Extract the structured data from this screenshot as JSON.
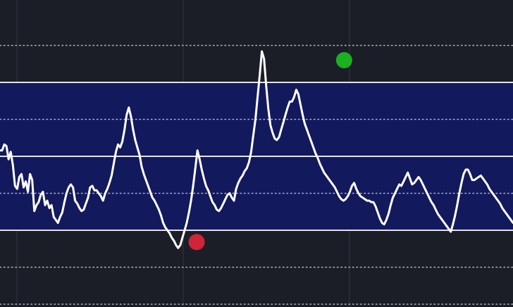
{
  "theme": {
    "background": "#1b1e27",
    "band_fill": "#13195d",
    "line_color": "#ffffff",
    "grid_color": "#c9ccd6",
    "vertical_grid_color": "#2a2e39",
    "low_marker_color": "#e3263a",
    "high_marker_color": "#19c11f"
  },
  "chart_data": {
    "type": "line",
    "title": "",
    "xlabel": "",
    "ylabel": "",
    "grid": true,
    "legend": "none",
    "x_range": [
      0,
      240
    ],
    "ylim": [
      -30,
      180
    ],
    "horizontal_levels": {
      "solid": [
        50,
        100,
        150
      ],
      "dotted": [
        0,
        25,
        75,
        125,
        175
      ]
    },
    "band": [
      50,
      150
    ],
    "series": [
      {
        "values": [
          104,
          104,
          108,
          107,
          98,
          103,
          94,
          80,
          78,
          86,
          88,
          79,
          83,
          76,
          88,
          84,
          63,
          67,
          69,
          74,
          76,
          67,
          70,
          65,
          67,
          59,
          57,
          55,
          59,
          62,
          69,
          75,
          79,
          81,
          79,
          70,
          68,
          65,
          63,
          64,
          68,
          72,
          79,
          80,
          77,
          77,
          75,
          73,
          70,
          75,
          78,
          82,
          87,
          95,
          103,
          108,
          106,
          110,
          118,
          128,
          133,
          127,
          118,
          111,
          106,
          101,
          93,
          88,
          84,
          80,
          76,
          72,
          70,
          67,
          64,
          60,
          55,
          52,
          50,
          48,
          45,
          43,
          40,
          38,
          40,
          45,
          50,
          55,
          62,
          70,
          80,
          92,
          104,
          98,
          91,
          85,
          80,
          77,
          73,
          69,
          67,
          64,
          63,
          65,
          68,
          71,
          74,
          75,
          72,
          70,
          78,
          82,
          85,
          87,
          90,
          92,
          96,
          103,
          114,
          125,
          140,
          155,
          171,
          166,
          148,
          132,
          121,
          116,
          112,
          111,
          113,
          118,
          123,
          128,
          133,
          137,
          137,
          140,
          145,
          142,
          135,
          128,
          122,
          118,
          114,
          110,
          106,
          102,
          99,
          95,
          92,
          89,
          87,
          85,
          83,
          81,
          79,
          76,
          73,
          71,
          70,
          71,
          73,
          76,
          80,
          82,
          78,
          75,
          73,
          72,
          71,
          70,
          70,
          69,
          69,
          66,
          62,
          58,
          55,
          54,
          57,
          61,
          67,
          72,
          75,
          78,
          81,
          80,
          83,
          86,
          89,
          85,
          81,
          82,
          84,
          86,
          84,
          81,
          78,
          75,
          72,
          69,
          67,
          64,
          61,
          59,
          57,
          55,
          53,
          51,
          49,
          54,
          60,
          67,
          75,
          82,
          88,
          91,
          91,
          88,
          84,
          84,
          85,
          86,
          87,
          85,
          83,
          81,
          78,
          76,
          74,
          72,
          70,
          68,
          65,
          63,
          61,
          59,
          57,
          55
        ]
      }
    ],
    "annotations": [
      {
        "label": "low-marker",
        "x": 92,
        "y": 42,
        "color": "#e3263a"
      },
      {
        "label": "high-marker",
        "x": 161,
        "y": 165,
        "color": "#19c11f"
      }
    ]
  }
}
